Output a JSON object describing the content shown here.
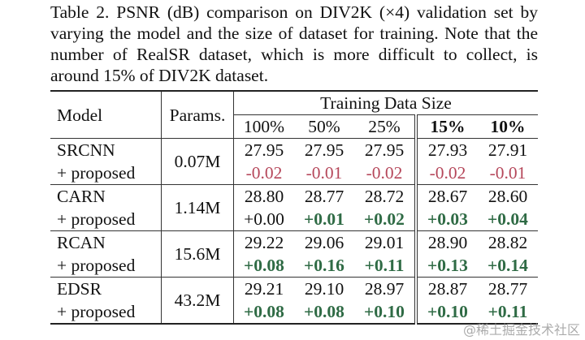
{
  "caption": "Table 2. PSNR (dB) comparison on DIV2K (×4) validation set by varying the model and the size of dataset for training. Note that the number of RealSR dataset, which is more difficult to collect, is around 15% of DIV2K dataset.",
  "headers": {
    "model": "Model",
    "params": "Params.",
    "group": "Training Data Size",
    "sizes": [
      "100%",
      "50%",
      "25%",
      "15%",
      "10%"
    ]
  },
  "rows": [
    {
      "model": "SRCNN",
      "proposed": "+ proposed",
      "params": "0.07M",
      "psnr": [
        "27.95",
        "27.95",
        "27.95",
        "27.93",
        "27.91"
      ],
      "delta": [
        "-0.02",
        "-0.01",
        "-0.02",
        "-0.02",
        "-0.01"
      ],
      "delta_style": [
        "red",
        "red",
        "red",
        "red",
        "red"
      ]
    },
    {
      "model": "CARN",
      "proposed": "+ proposed",
      "params": "1.14M",
      "psnr": [
        "28.80",
        "28.77",
        "28.72",
        "28.67",
        "28.60"
      ],
      "delta": [
        "+0.00",
        "+0.01",
        "+0.02",
        "+0.03",
        "+0.04"
      ],
      "delta_style": [
        "",
        "grn",
        "grn",
        "grn",
        "grn"
      ]
    },
    {
      "model": "RCAN",
      "proposed": "+ proposed",
      "params": "15.6M",
      "psnr": [
        "29.22",
        "29.06",
        "29.01",
        "28.90",
        "28.82"
      ],
      "delta": [
        "+0.08",
        "+0.16",
        "+0.11",
        "+0.13",
        "+0.14"
      ],
      "delta_style": [
        "grn",
        "grn",
        "grn",
        "grn",
        "grn"
      ]
    },
    {
      "model": "EDSR",
      "proposed": "+ proposed",
      "params": "43.2M",
      "psnr": [
        "29.21",
        "29.10",
        "28.97",
        "28.87",
        "28.77"
      ],
      "delta": [
        "+0.08",
        "+0.08",
        "+0.10",
        "+0.10",
        "+0.11"
      ],
      "delta_style": [
        "grn",
        "grn",
        "grn",
        "grn",
        "grn"
      ]
    }
  ],
  "colors": {
    "negative": "#b5475a",
    "positive": "#2f6b45"
  },
  "watermark": "@稀土掘金技术社区"
}
